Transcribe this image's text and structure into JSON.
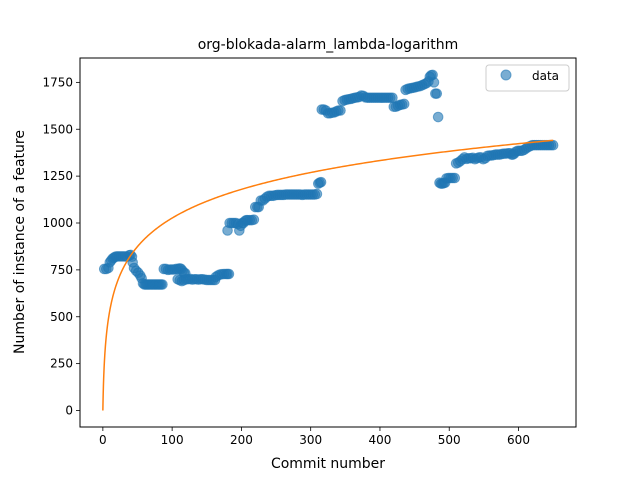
{
  "chart_data": {
    "type": "scatter",
    "title": "org-blokada-alarm_lambda-logarithm",
    "xlabel": "Commit number",
    "ylabel": "Number of instance of a feature",
    "xlim": [
      -33,
      683
    ],
    "ylim": [
      -88,
      1880
    ],
    "xticks": [
      0,
      100,
      200,
      300,
      400,
      500,
      600
    ],
    "yticks": [
      0,
      250,
      500,
      750,
      1000,
      1250,
      1500,
      1750
    ],
    "grid": false,
    "legend": {
      "placement": "upper right",
      "entries": [
        "data"
      ]
    },
    "colors": {
      "data": "#1f77b4",
      "fit": "#ff7f0e"
    },
    "series": [
      {
        "name": "data",
        "kind": "scatter",
        "marker_alpha": 0.6,
        "points": [
          [
            2,
            755
          ],
          [
            5,
            755
          ],
          [
            8,
            760
          ],
          [
            10,
            790
          ],
          [
            12,
            800
          ],
          [
            14,
            810
          ],
          [
            16,
            815
          ],
          [
            18,
            820
          ],
          [
            20,
            822
          ],
          [
            23,
            822
          ],
          [
            26,
            822
          ],
          [
            29,
            822
          ],
          [
            32,
            822
          ],
          [
            35,
            820
          ],
          [
            38,
            828
          ],
          [
            40,
            830
          ],
          [
            42,
            820
          ],
          [
            43,
            790
          ],
          [
            45,
            760
          ],
          [
            48,
            745
          ],
          [
            51,
            735
          ],
          [
            54,
            720
          ],
          [
            56,
            705
          ],
          [
            58,
            678
          ],
          [
            60,
            672
          ],
          [
            62,
            672
          ],
          [
            64,
            672
          ],
          [
            66,
            672
          ],
          [
            68,
            672
          ],
          [
            70,
            672
          ],
          [
            72,
            672
          ],
          [
            74,
            672
          ],
          [
            76,
            672
          ],
          [
            78,
            672
          ],
          [
            80,
            672
          ],
          [
            82,
            672
          ],
          [
            84,
            672
          ],
          [
            86,
            672
          ],
          [
            88,
            755
          ],
          [
            91,
            755
          ],
          [
            94,
            750
          ],
          [
            97,
            752
          ],
          [
            100,
            752
          ],
          [
            103,
            752
          ],
          [
            106,
            755
          ],
          [
            109,
            755
          ],
          [
            111,
            758
          ],
          [
            113,
            755
          ],
          [
            115,
            745
          ],
          [
            117,
            735
          ],
          [
            119,
            732
          ],
          [
            108,
            700
          ],
          [
            111,
            695
          ],
          [
            114,
            690
          ],
          [
            117,
            695
          ],
          [
            120,
            700
          ],
          [
            123,
            700
          ],
          [
            126,
            702
          ],
          [
            129,
            698
          ],
          [
            132,
            700
          ],
          [
            135,
            700
          ],
          [
            138,
            698
          ],
          [
            141,
            700
          ],
          [
            144,
            700
          ],
          [
            147,
            698
          ],
          [
            150,
            696
          ],
          [
            153,
            696
          ],
          [
            156,
            696
          ],
          [
            159,
            696
          ],
          [
            162,
            696
          ],
          [
            163,
            712
          ],
          [
            166,
            720
          ],
          [
            169,
            725
          ],
          [
            172,
            727
          ],
          [
            175,
            728
          ],
          [
            178,
            728
          ],
          [
            180,
            728
          ],
          [
            182,
            728
          ],
          [
            180,
            960
          ],
          [
            183,
            1000
          ],
          [
            186,
            1000
          ],
          [
            189,
            1000
          ],
          [
            192,
            1000
          ],
          [
            195,
            995
          ],
          [
            197,
            960
          ],
          [
            199,
            985
          ],
          [
            201,
            1000
          ],
          [
            203,
            1000
          ],
          [
            205,
            1010
          ],
          [
            207,
            1015
          ],
          [
            209,
            1015
          ],
          [
            212,
            1015
          ],
          [
            215,
            1015
          ],
          [
            218,
            1018
          ],
          [
            220,
            1085
          ],
          [
            223,
            1085
          ],
          [
            225,
            1085
          ],
          [
            228,
            1120
          ],
          [
            231,
            1120
          ],
          [
            234,
            1130
          ],
          [
            237,
            1140
          ],
          [
            240,
            1145
          ],
          [
            243,
            1145
          ],
          [
            246,
            1145
          ],
          [
            249,
            1148
          ],
          [
            252,
            1150
          ],
          [
            255,
            1150
          ],
          [
            258,
            1150
          ],
          [
            261,
            1150
          ],
          [
            264,
            1152
          ],
          [
            267,
            1152
          ],
          [
            270,
            1152
          ],
          [
            273,
            1152
          ],
          [
            276,
            1152
          ],
          [
            279,
            1152
          ],
          [
            282,
            1152
          ],
          [
            285,
            1152
          ],
          [
            288,
            1150
          ],
          [
            291,
            1152
          ],
          [
            294,
            1152
          ],
          [
            297,
            1152
          ],
          [
            300,
            1152
          ],
          [
            303,
            1152
          ],
          [
            306,
            1152
          ],
          [
            309,
            1155
          ],
          [
            311,
            1210
          ],
          [
            313,
            1215
          ],
          [
            315,
            1218
          ],
          [
            316,
            1605
          ],
          [
            319,
            1605
          ],
          [
            322,
            1600
          ],
          [
            325,
            1585
          ],
          [
            328,
            1585
          ],
          [
            331,
            1588
          ],
          [
            334,
            1590
          ],
          [
            337,
            1595
          ],
          [
            340,
            1600
          ],
          [
            343,
            1600
          ],
          [
            346,
            1650
          ],
          [
            349,
            1655
          ],
          [
            352,
            1658
          ],
          [
            355,
            1660
          ],
          [
            358,
            1662
          ],
          [
            361,
            1665
          ],
          [
            364,
            1668
          ],
          [
            367,
            1670
          ],
          [
            370,
            1672
          ],
          [
            373,
            1680
          ],
          [
            376,
            1678
          ],
          [
            379,
            1670
          ],
          [
            382,
            1668
          ],
          [
            385,
            1668
          ],
          [
            388,
            1668
          ],
          [
            391,
            1668
          ],
          [
            394,
            1668
          ],
          [
            397,
            1668
          ],
          [
            400,
            1668
          ],
          [
            403,
            1668
          ],
          [
            406,
            1668
          ],
          [
            409,
            1668
          ],
          [
            412,
            1668
          ],
          [
            415,
            1668
          ],
          [
            418,
            1668
          ],
          [
            420,
            1620
          ],
          [
            423,
            1620
          ],
          [
            426,
            1625
          ],
          [
            429,
            1630
          ],
          [
            432,
            1632
          ],
          [
            435,
            1635
          ],
          [
            437,
            1710
          ],
          [
            440,
            1715
          ],
          [
            443,
            1718
          ],
          [
            446,
            1720
          ],
          [
            449,
            1722
          ],
          [
            452,
            1725
          ],
          [
            455,
            1728
          ],
          [
            458,
            1730
          ],
          [
            461,
            1735
          ],
          [
            464,
            1740
          ],
          [
            467,
            1745
          ],
          [
            470,
            1755
          ],
          [
            472,
            1780
          ],
          [
            474,
            1788
          ],
          [
            476,
            1790
          ],
          [
            478,
            1750
          ],
          [
            480,
            1690
          ],
          [
            482,
            1690
          ],
          [
            484,
            1565
          ],
          [
            486,
            1215
          ],
          [
            488,
            1210
          ],
          [
            490,
            1210
          ],
          [
            492,
            1212
          ],
          [
            494,
            1215
          ],
          [
            496,
            1238
          ],
          [
            499,
            1240
          ],
          [
            502,
            1240
          ],
          [
            505,
            1240
          ],
          [
            508,
            1240
          ],
          [
            510,
            1318
          ],
          [
            513,
            1322
          ],
          [
            516,
            1330
          ],
          [
            519,
            1340
          ],
          [
            522,
            1350
          ],
          [
            525,
            1342
          ],
          [
            528,
            1345
          ],
          [
            531,
            1345
          ],
          [
            534,
            1348
          ],
          [
            537,
            1340
          ],
          [
            540,
            1345
          ],
          [
            543,
            1350
          ],
          [
            546,
            1350
          ],
          [
            549,
            1340
          ],
          [
            552,
            1345
          ],
          [
            555,
            1358
          ],
          [
            558,
            1360
          ],
          [
            561,
            1360
          ],
          [
            564,
            1362
          ],
          [
            567,
            1365
          ],
          [
            570,
            1365
          ],
          [
            573,
            1365
          ],
          [
            576,
            1368
          ],
          [
            579,
            1370
          ],
          [
            582,
            1370
          ],
          [
            585,
            1372
          ],
          [
            588,
            1372
          ],
          [
            590,
            1365
          ],
          [
            592,
            1365
          ],
          [
            594,
            1370
          ],
          [
            596,
            1380
          ],
          [
            599,
            1385
          ],
          [
            602,
            1385
          ],
          [
            605,
            1385
          ],
          [
            608,
            1390
          ],
          [
            611,
            1398
          ],
          [
            614,
            1405
          ],
          [
            617,
            1410
          ],
          [
            620,
            1415
          ],
          [
            623,
            1415
          ],
          [
            626,
            1415
          ],
          [
            629,
            1415
          ],
          [
            632,
            1415
          ],
          [
            635,
            1415
          ],
          [
            638,
            1415
          ],
          [
            641,
            1415
          ],
          [
            644,
            1415
          ],
          [
            647,
            1415
          ],
          [
            650,
            1415
          ]
        ]
      },
      {
        "name": "",
        "kind": "line",
        "function": "a*ln(1+x)",
        "a": 222.4,
        "x_range": [
          0,
          650
        ]
      }
    ]
  }
}
